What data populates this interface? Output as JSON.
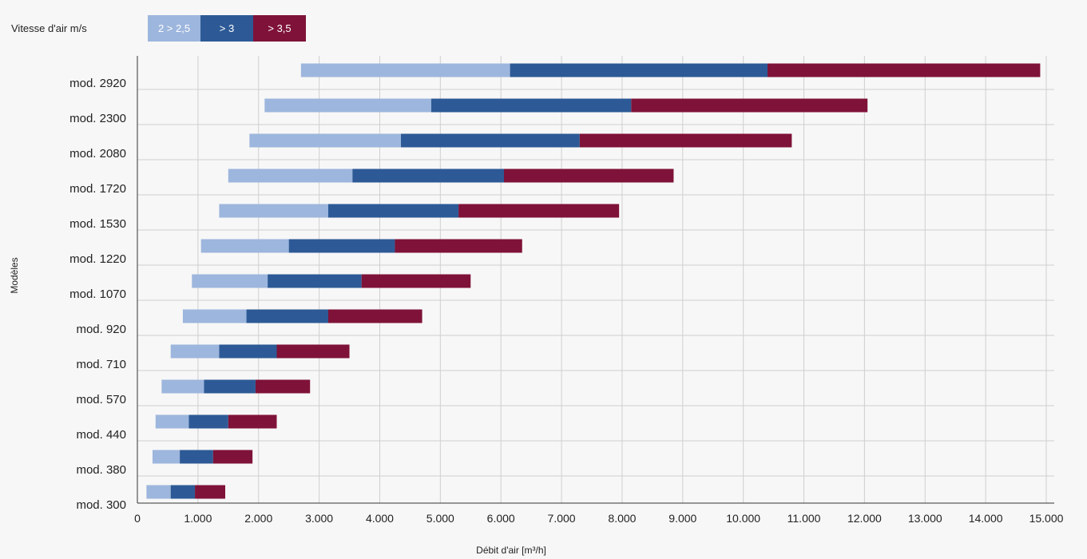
{
  "colors": {
    "low": "#9db6dd",
    "mid": "#2d5a96",
    "high": "#7f1238",
    "grid": "#cfcfcf",
    "axis": "#333333",
    "text": "#222222"
  },
  "legend": {
    "title": "Vitesse d'air m/s",
    "items": [
      {
        "label": "2 > 2,5",
        "color": "#9db6dd"
      },
      {
        "label": "> 3",
        "color": "#2d5a96"
      },
      {
        "label": "> 3,5",
        "color": "#7f1238"
      }
    ]
  },
  "chart_data": {
    "type": "bar",
    "orientation": "horizontal",
    "stacked": true,
    "title": "",
    "xlabel": "Débit d'air [m³/h]",
    "ylabel": "Modèles",
    "xlim": [
      0,
      15000
    ],
    "xticks": [
      0,
      1000,
      2000,
      3000,
      4000,
      5000,
      6000,
      7000,
      8000,
      9000,
      10000,
      11000,
      12000,
      13000,
      14000,
      15000
    ],
    "xtick_labels": [
      "0",
      "1.000",
      "2.000",
      "3.000",
      "4.000",
      "5.000",
      "6.000",
      "7.000",
      "8.000",
      "9.000",
      "10.000",
      "11.000",
      "12.000",
      "13.000",
      "14.000",
      "15.000"
    ],
    "grid": true,
    "legend_position": "top-left",
    "categories": [
      "mod. 2920",
      "mod. 2300",
      "mod. 2080",
      "mod. 1720",
      "mod. 1530",
      "mod. 1220",
      "mod. 1070",
      "mod. 920",
      "mod. 710",
      "mod. 570",
      "mod. 440",
      "mod. 380",
      "mod. 300"
    ],
    "series": [
      {
        "name": "2 > 2,5",
        "color": "#9db6dd",
        "ranges": [
          [
            2700,
            6150
          ],
          [
            2100,
            4850
          ],
          [
            1850,
            4350
          ],
          [
            1500,
            3550
          ],
          [
            1350,
            3150
          ],
          [
            1050,
            2500
          ],
          [
            900,
            2150
          ],
          [
            750,
            1800
          ],
          [
            550,
            1350
          ],
          [
            400,
            1100
          ],
          [
            300,
            850
          ],
          [
            250,
            700
          ],
          [
            150,
            550
          ]
        ]
      },
      {
        "name": "> 3",
        "color": "#2d5a96",
        "ranges": [
          [
            6150,
            10400
          ],
          [
            4850,
            8150
          ],
          [
            4350,
            7300
          ],
          [
            3550,
            6050
          ],
          [
            3150,
            5300
          ],
          [
            2500,
            4250
          ],
          [
            2150,
            3700
          ],
          [
            1800,
            3150
          ],
          [
            1350,
            2300
          ],
          [
            1100,
            1950
          ],
          [
            850,
            1500
          ],
          [
            700,
            1250
          ],
          [
            550,
            950
          ]
        ]
      },
      {
        "name": "> 3,5",
        "color": "#7f1238",
        "ranges": [
          [
            10400,
            14900
          ],
          [
            8150,
            12050
          ],
          [
            7300,
            10800
          ],
          [
            6050,
            8850
          ],
          [
            5300,
            7950
          ],
          [
            4250,
            6350
          ],
          [
            3700,
            5500
          ],
          [
            3150,
            4700
          ],
          [
            2300,
            3500
          ],
          [
            1950,
            2850
          ],
          [
            1500,
            2300
          ],
          [
            1250,
            1900
          ],
          [
            950,
            1450
          ]
        ]
      }
    ]
  }
}
